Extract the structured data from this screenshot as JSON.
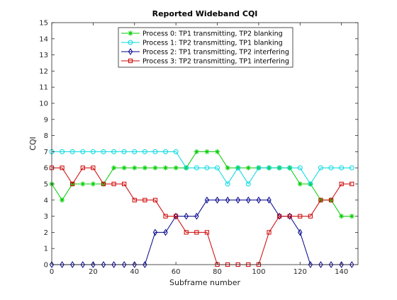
{
  "chart_data": {
    "type": "line",
    "title": "Reported Wideband CQI",
    "xlabel": "Subframe number",
    "ylabel": "CQI",
    "xlim": [
      0,
      148
    ],
    "ylim": [
      0,
      15
    ],
    "xticks": [
      0,
      20,
      40,
      60,
      80,
      100,
      120,
      140
    ],
    "yticks": [
      0,
      1,
      2,
      3,
      4,
      5,
      6,
      7,
      8,
      9,
      10,
      11,
      12,
      13,
      14,
      15
    ],
    "grid": false,
    "legend_position": "top-center",
    "x": [
      0,
      5,
      10,
      15,
      20,
      25,
      30,
      35,
      40,
      45,
      50,
      55,
      60,
      65,
      70,
      75,
      80,
      85,
      90,
      95,
      100,
      105,
      110,
      115,
      120,
      125,
      130,
      135,
      140,
      145
    ],
    "series": [
      {
        "name": "Process 0: TP1 transmitting, TP2 blanking",
        "color": "#00cc00",
        "marker": "star",
        "values": [
          5,
          4,
          5,
          5,
          5,
          5,
          6,
          6,
          6,
          6,
          6,
          6,
          6,
          6,
          7,
          7,
          7,
          6,
          6,
          6,
          6,
          6,
          6,
          6,
          5,
          5,
          4,
          4,
          3,
          3
        ]
      },
      {
        "name": "Process 1: TP2 transmitting, TP1 blanking",
        "color": "#00d8e0",
        "marker": "circle",
        "values": [
          7,
          7,
          7,
          7,
          7,
          7,
          7,
          7,
          7,
          7,
          7,
          7,
          7,
          6,
          6,
          6,
          6,
          5,
          6,
          5,
          6,
          6,
          6,
          6,
          6,
          5,
          6,
          6,
          6,
          6
        ]
      },
      {
        "name": "Process 2: TP1 transmitting, TP2 interfering",
        "color": "#00008b",
        "marker": "diamond",
        "values": [
          0,
          0,
          0,
          0,
          0,
          0,
          0,
          0,
          0,
          0,
          2,
          2,
          3,
          3,
          3,
          4,
          4,
          4,
          4,
          4,
          4,
          4,
          3,
          3,
          2,
          0,
          0,
          0,
          0,
          0
        ]
      },
      {
        "name": "Process 3: TP2 transmitting, TP1 interfering",
        "color": "#cc0000",
        "marker": "square",
        "values": [
          6,
          6,
          5,
          6,
          6,
          5,
          5,
          5,
          4,
          4,
          4,
          3,
          3,
          2,
          2,
          2,
          0,
          0,
          0,
          0,
          0,
          2,
          3,
          3,
          3,
          3,
          4,
          4,
          5,
          5
        ]
      }
    ]
  }
}
